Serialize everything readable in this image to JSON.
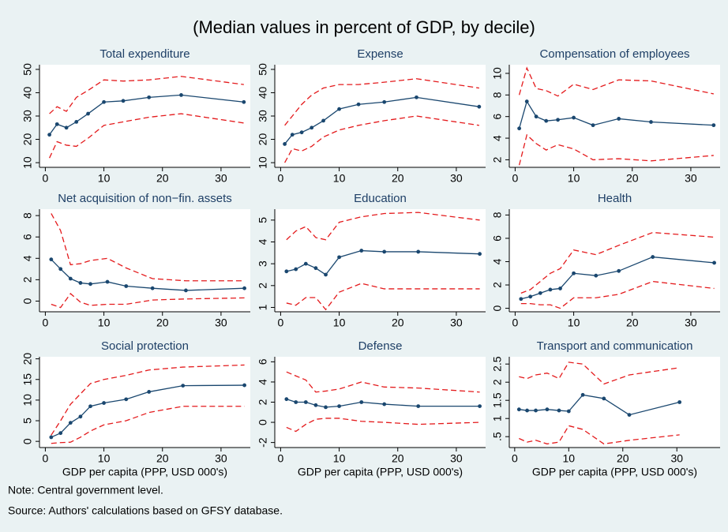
{
  "title": "(Median values in percent of GDP, by decile)",
  "note": "Note: Central government level.",
  "source": "Source: Authors' calculations based on GFSY database.",
  "chart_data": [
    {
      "type": "line",
      "title": "Total expenditure",
      "x": [
        0.7,
        2,
        3.6,
        5.3,
        7.3,
        10,
        13.3,
        17.7,
        23.2,
        33.9
      ],
      "xlim": [
        -1,
        35
      ],
      "xticks": [
        0,
        10,
        20,
        30
      ],
      "ylim": [
        8,
        52
      ],
      "yticks": [
        10,
        20,
        30,
        40,
        50
      ],
      "series": [
        {
          "color": "#1a476f",
          "values": [
            22,
            26.5,
            25,
            27.5,
            31,
            36,
            36.5,
            38,
            39,
            36
          ]
        },
        {
          "color": "#e41a1c",
          "dash": true,
          "values": [
            31,
            34,
            32,
            38,
            41,
            45.5,
            45,
            45.5,
            47,
            43.5
          ]
        },
        {
          "color": "#e41a1c",
          "dash": true,
          "values": [
            12,
            19,
            17.5,
            17,
            20.5,
            26,
            27.5,
            29.5,
            31,
            27
          ]
        }
      ]
    },
    {
      "type": "line",
      "title": "Expense",
      "x": [
        0.7,
        2,
        3.6,
        5.3,
        7.3,
        10,
        13.3,
        17.7,
        23.2,
        33.9
      ],
      "xlim": [
        -1,
        35
      ],
      "xticks": [
        0,
        10,
        20,
        30
      ],
      "ylim": [
        8,
        52
      ],
      "yticks": [
        10,
        20,
        30,
        40,
        50
      ],
      "series": [
        {
          "color": "#1a476f",
          "values": [
            18,
            22,
            23,
            25,
            28,
            33,
            35,
            36,
            38,
            34
          ]
        },
        {
          "color": "#e41a1c",
          "dash": true,
          "values": [
            26,
            30,
            35,
            39,
            42,
            43.5,
            43.5,
            44.5,
            46,
            42
          ]
        },
        {
          "color": "#e41a1c",
          "dash": true,
          "values": [
            10,
            16,
            15,
            17,
            21,
            24,
            26,
            28,
            30,
            26
          ]
        }
      ]
    },
    {
      "type": "line",
      "title": "Compensation of employees",
      "x": [
        0.7,
        2,
        3.6,
        5.3,
        7.3,
        10,
        13.3,
        17.7,
        23.2,
        33.9
      ],
      "xlim": [
        -1,
        35
      ],
      "xticks": [
        0,
        10,
        20,
        30
      ],
      "ylim": [
        1.3,
        10.8
      ],
      "yticks": [
        2,
        4,
        6,
        8,
        10
      ],
      "series": [
        {
          "color": "#1a476f",
          "values": [
            4.9,
            7.4,
            6,
            5.6,
            5.7,
            5.9,
            5.2,
            5.8,
            5.5,
            5.2
          ]
        },
        {
          "color": "#e41a1c",
          "dash": true,
          "values": [
            8,
            10.5,
            8.6,
            8.4,
            7.9,
            9,
            8.5,
            9.4,
            9.3,
            8.1
          ]
        },
        {
          "color": "#e41a1c",
          "dash": true,
          "values": [
            1.5,
            4.3,
            3.5,
            2.9,
            3.4,
            3,
            2,
            2.1,
            1.9,
            2.4
          ]
        }
      ]
    },
    {
      "type": "line",
      "title": "Net acquisition of non−fin. assets",
      "x": [
        1,
        2.6,
        4.3,
        6,
        7.7,
        10.6,
        13.8,
        18.3,
        24,
        34
      ],
      "xlim": [
        -1,
        35
      ],
      "xticks": [
        0,
        10,
        20,
        30
      ],
      "ylim": [
        -1,
        8.6
      ],
      "yticks": [
        0,
        2,
        4,
        6,
        8
      ],
      "series": [
        {
          "color": "#1a476f",
          "values": [
            3.9,
            3,
            2.1,
            1.7,
            1.6,
            1.8,
            1.4,
            1.2,
            1,
            1.2
          ]
        },
        {
          "color": "#e41a1c",
          "dash": true,
          "values": [
            8.2,
            6.6,
            3.4,
            3.5,
            3.8,
            4,
            3.1,
            2.1,
            1.9,
            1.9
          ]
        },
        {
          "color": "#e41a1c",
          "dash": true,
          "values": [
            -0.3,
            -0.6,
            0.7,
            -0.1,
            -0.4,
            -0.3,
            -0.3,
            0.1,
            0.2,
            0.3
          ]
        }
      ]
    },
    {
      "type": "line",
      "title": "Education",
      "x": [
        1,
        2.6,
        4.3,
        6,
        7.7,
        10,
        13.8,
        17.7,
        23.5,
        34
      ],
      "xlim": [
        -1,
        35
      ],
      "xticks": [
        0,
        10,
        20,
        30
      ],
      "ylim": [
        0.8,
        5.5
      ],
      "yticks": [
        1,
        2,
        3,
        4,
        5
      ],
      "series": [
        {
          "color": "#1a476f",
          "values": [
            2.65,
            2.75,
            3,
            2.8,
            2.5,
            3.3,
            3.6,
            3.55,
            3.55,
            3.45
          ]
        },
        {
          "color": "#e41a1c",
          "dash": true,
          "values": [
            4.1,
            4.5,
            4.7,
            4.2,
            4.1,
            4.9,
            5.15,
            5.3,
            5.35,
            5
          ]
        },
        {
          "color": "#e41a1c",
          "dash": true,
          "values": [
            1.2,
            1.1,
            1.45,
            1.45,
            0.9,
            1.7,
            2.1,
            1.85,
            1.85,
            1.85
          ]
        }
      ]
    },
    {
      "type": "line",
      "title": "Health",
      "x": [
        1,
        2.6,
        4.3,
        6,
        7.7,
        10,
        13.8,
        17.7,
        23.5,
        34
      ],
      "xlim": [
        -1,
        35
      ],
      "xticks": [
        0,
        10,
        20,
        30
      ],
      "ylim": [
        -0.3,
        8.5
      ],
      "yticks": [
        0,
        2,
        4,
        6,
        8
      ],
      "series": [
        {
          "color": "#1a476f",
          "values": [
            0.8,
            1,
            1.3,
            1.6,
            1.7,
            3,
            2.8,
            3.2,
            4.4,
            3.9
          ]
        },
        {
          "color": "#e41a1c",
          "dash": true,
          "values": [
            1.3,
            1.6,
            2.3,
            3,
            3.4,
            5,
            4.6,
            5.4,
            6.5,
            6.1
          ]
        },
        {
          "color": "#e41a1c",
          "dash": true,
          "values": [
            0.4,
            0.4,
            0.3,
            0.3,
            0,
            0.9,
            0.9,
            1.2,
            2.3,
            1.7
          ]
        }
      ]
    },
    {
      "type": "line",
      "title": "Social protection",
      "xlabel": "GDP per capita (PPP, USD 000's)",
      "x": [
        1,
        2.6,
        4.3,
        6,
        7.7,
        10,
        13.8,
        17.7,
        23.5,
        34
      ],
      "xlim": [
        -1,
        35
      ],
      "xticks": [
        0,
        10,
        20,
        30
      ],
      "ylim": [
        -1.5,
        20.5
      ],
      "yticks": [
        0,
        5,
        10,
        15,
        20
      ],
      "series": [
        {
          "color": "#1a476f",
          "values": [
            1,
            2,
            4.5,
            6,
            8.5,
            9.3,
            10.2,
            12,
            13.5,
            13.6
          ]
        },
        {
          "color": "#e41a1c",
          "dash": true,
          "values": [
            1.5,
            5,
            9,
            11.5,
            14,
            15,
            16,
            17.3,
            18,
            18.5
          ]
        },
        {
          "color": "#e41a1c",
          "dash": true,
          "values": [
            -0.5,
            -0.3,
            -0.2,
            1,
            2.5,
            4,
            5,
            7,
            8.5,
            8.5
          ]
        }
      ]
    },
    {
      "type": "line",
      "title": "Defense",
      "xlabel": "GDP per capita (PPP, USD 000's)",
      "x": [
        1,
        2.6,
        4.3,
        6,
        7.7,
        10,
        13.8,
        17.7,
        23.5,
        34
      ],
      "xlim": [
        -1,
        35
      ],
      "xticks": [
        0,
        10,
        20,
        30
      ],
      "ylim": [
        -2.5,
        6.5
      ],
      "yticks": [
        -2,
        0,
        2,
        4,
        6
      ],
      "series": [
        {
          "color": "#1a476f",
          "values": [
            2.3,
            2,
            2,
            1.7,
            1.5,
            1.6,
            2,
            1.8,
            1.6,
            1.6
          ]
        },
        {
          "color": "#e41a1c",
          "dash": true,
          "values": [
            5,
            4.6,
            4.2,
            3,
            3.1,
            3.3,
            4,
            3.5,
            3.4,
            3
          ]
        },
        {
          "color": "#e41a1c",
          "dash": true,
          "values": [
            -0.5,
            -0.9,
            -0.2,
            0.3,
            0.4,
            0.4,
            0.1,
            0,
            -0.2,
            0
          ]
        }
      ]
    },
    {
      "type": "line",
      "title": "Transport and communication",
      "xlabel": "GDP per capita (PPP, USD 000's)",
      "x": [
        0.8,
        2.3,
        3.9,
        6,
        8.2,
        10,
        12.6,
        16.5,
        21.2,
        30.5
      ],
      "xlim": [
        -1,
        38
      ],
      "xticks": [
        0,
        10,
        20,
        30
      ],
      "ylim": [
        0.2,
        2.7
      ],
      "yticks": [
        {
          "value": 0.5,
          "label": ".5"
        },
        1,
        1.5,
        2,
        2.5
      ],
      "series": [
        {
          "color": "#1a476f",
          "values": [
            1.25,
            1.22,
            1.22,
            1.25,
            1.22,
            1.2,
            1.65,
            1.55,
            1.1,
            1.45
          ]
        },
        {
          "color": "#e41a1c",
          "dash": true,
          "values": [
            2.15,
            2.1,
            2.2,
            2.25,
            2.1,
            2.55,
            2.5,
            1.95,
            2.2,
            2.4
          ]
        },
        {
          "color": "#e41a1c",
          "dash": true,
          "values": [
            0.45,
            0.35,
            0.4,
            0.3,
            0.35,
            0.8,
            0.7,
            0.3,
            0.4,
            0.55
          ]
        }
      ]
    }
  ]
}
